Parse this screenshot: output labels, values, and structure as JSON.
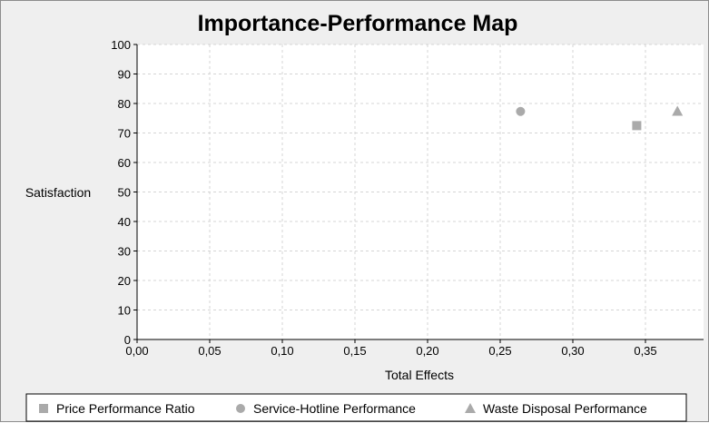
{
  "chart_data": {
    "type": "scatter",
    "title": "Importance-Performance Map",
    "xlabel": "Total Effects",
    "ylabel": "Satisfaction",
    "xlim": [
      0,
      0.39
    ],
    "ylim": [
      0,
      100
    ],
    "x_ticks": [
      "0,00",
      "0,05",
      "0,10",
      "0,15",
      "0,20",
      "0,25",
      "0,30",
      "0,35"
    ],
    "x_tick_values": [
      0,
      0.05,
      0.1,
      0.15,
      0.2,
      0.25,
      0.3,
      0.35
    ],
    "y_ticks": [
      "0",
      "10",
      "20",
      "30",
      "40",
      "50",
      "60",
      "70",
      "80",
      "90",
      "100"
    ],
    "y_tick_values": [
      0,
      10,
      20,
      30,
      40,
      50,
      60,
      70,
      80,
      90,
      100
    ],
    "grid": true,
    "legend_position": "bottom",
    "series": [
      {
        "name": "Price Performance Ratio",
        "marker": "square",
        "color": "#aaaaaa",
        "x": 0.344,
        "y": 72.5
      },
      {
        "name": "Service-Hotline Performance",
        "marker": "circle",
        "color": "#aaaaaa",
        "x": 0.264,
        "y": 77.3
      },
      {
        "name": "Waste Disposal Performance",
        "marker": "triangle",
        "color": "#aaaaaa",
        "x": 0.372,
        "y": 77.4
      }
    ]
  }
}
